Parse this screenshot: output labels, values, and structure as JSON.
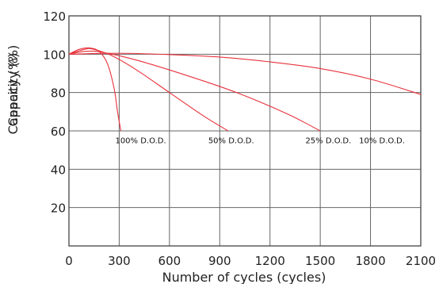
{
  "chart_data": {
    "type": "line",
    "title": "",
    "xlabel": "Number of cycles (cycles)",
    "ylabel_lines": [
      "Capacity (%)",
      "Capacity (%)"
    ],
    "xlim": [
      0,
      2100
    ],
    "ylim": [
      0,
      120
    ],
    "xticks": [
      0,
      300,
      600,
      900,
      1200,
      1500,
      1800,
      2100
    ],
    "yticks": [
      20,
      40,
      60,
      80,
      100,
      120
    ],
    "xtick_labels": [
      "0",
      "300",
      "600",
      "900",
      "1200",
      "1500",
      "1800",
      "2100"
    ],
    "ytick_labels": [
      "20",
      "40",
      "60",
      "80",
      "100",
      "120"
    ],
    "grid": true,
    "legend": "none",
    "series": [
      {
        "name": "100% D.O.D.",
        "x": [
          0,
          60,
          120,
          180,
          230,
          270,
          290,
          310
        ],
        "y": [
          100,
          102.5,
          103.3,
          101.5,
          95,
          82,
          70,
          60
        ]
      },
      {
        "name": "50% D.O.D.",
        "x": [
          0,
          100,
          150,
          250,
          400,
          600,
          800,
          950
        ],
        "y": [
          100,
          102.7,
          102.5,
          99.5,
          92,
          80,
          68,
          60
        ]
      },
      {
        "name": "25% D.O.D.",
        "x": [
          0,
          100,
          200,
          400,
          700,
          1000,
          1300,
          1500
        ],
        "y": [
          100,
          101.5,
          101.0,
          97.0,
          89.0,
          80.0,
          69.0,
          60
        ]
      },
      {
        "name": "10% D.O.D.",
        "x": [
          0,
          300,
          600,
          900,
          1200,
          1500,
          1800,
          2100
        ],
        "y": [
          100,
          100.5,
          99.8,
          98.5,
          96.0,
          92.5,
          87.0,
          79.0
        ]
      }
    ],
    "annotations": [
      {
        "text": "100% D.O.D.",
        "x": 580,
        "y": 53.5
      },
      {
        "text": "50% D.O.D.",
        "x": 1105,
        "y": 53.5
      },
      {
        "text": "25% D.O.D.",
        "x": 1685,
        "y": 53.5
      },
      {
        "text": "10% D.O.D.",
        "x": 2005,
        "y": 53.5
      }
    ]
  }
}
